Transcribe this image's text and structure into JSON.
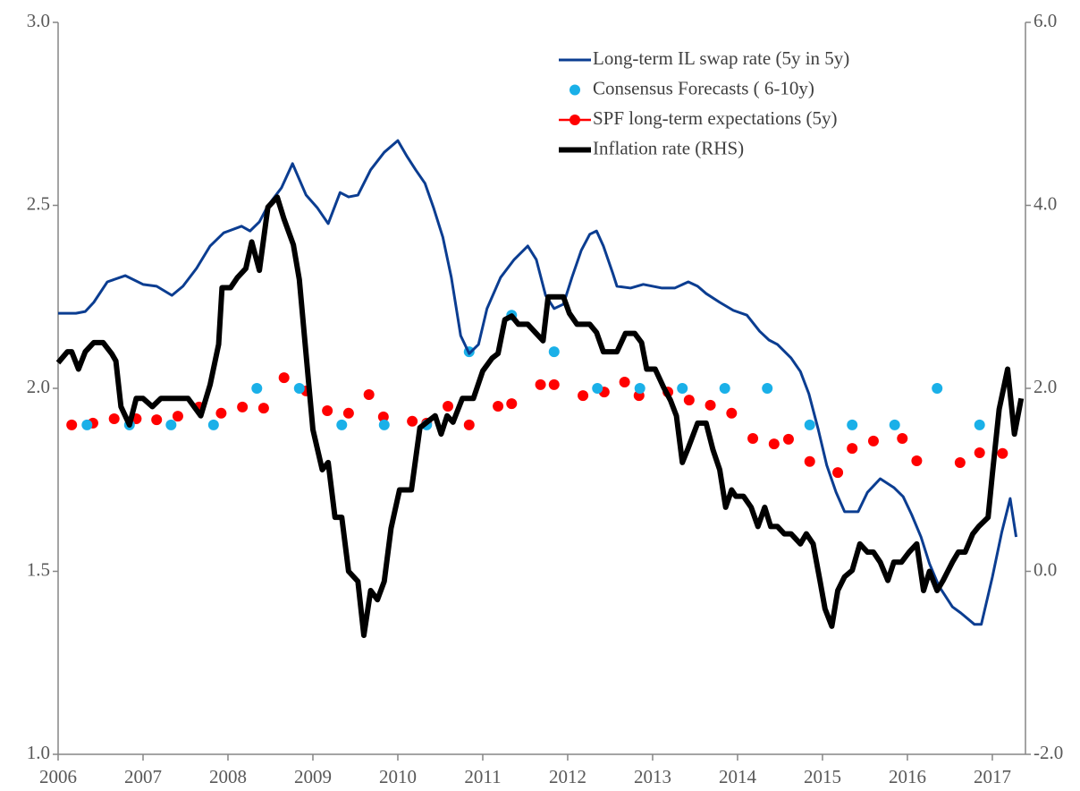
{
  "chart_data": {
    "type": "line",
    "xlim": [
      2006,
      2017.39
    ],
    "xticks": [
      2006,
      2007,
      2008,
      2009,
      2010,
      2011,
      2012,
      2013,
      2014,
      2015,
      2016,
      2017
    ],
    "ylim": [
      1,
      3
    ],
    "yticks": [
      {
        "value": 1,
        "label": "1.0"
      },
      1.5,
      {
        "value": 2,
        "label": "2.0"
      },
      2.5,
      {
        "value": 3,
        "label": "3.0"
      }
    ],
    "y2lim": [
      -2,
      6
    ],
    "y2ticks": [
      {
        "value": -2,
        "label": "-2.0"
      },
      {
        "value": 0,
        "label": "0.0"
      },
      {
        "value": 2,
        "label": "2.0"
      },
      {
        "value": 4,
        "label": "4.0"
      },
      {
        "value": 6,
        "label": "6.0"
      }
    ],
    "grid": false,
    "legend": "top-right",
    "series": [
      {
        "name": "Long-term IL swap rate (5y in 5y)",
        "color": "#0b3d91",
        "style": "line",
        "width": 3,
        "x": [
          2006.0,
          2006.21,
          2006.32,
          2006.42,
          2006.58,
          2006.79,
          2007.0,
          2007.16,
          2007.34,
          2007.47,
          2007.63,
          2007.79,
          2007.95,
          2008.16,
          2008.26,
          2008.37,
          2008.47,
          2008.63,
          2008.76,
          2008.92,
          2009.05,
          2009.18,
          2009.32,
          2009.42,
          2009.53,
          2009.68,
          2009.84,
          2010.0,
          2010.11,
          2010.21,
          2010.32,
          2010.42,
          2010.53,
          2010.63,
          2010.74,
          2010.84,
          2010.95,
          2011.05,
          2011.21,
          2011.37,
          2011.53,
          2011.63,
          2011.74,
          2011.84,
          2011.95,
          2012.05,
          2012.16,
          2012.26,
          2012.34,
          2012.42,
          2012.53,
          2012.58,
          2012.74,
          2012.89,
          2013.11,
          2013.26,
          2013.42,
          2013.53,
          2013.63,
          2013.79,
          2013.95,
          2014.11,
          2014.26,
          2014.37,
          2014.47,
          2014.63,
          2014.74,
          2014.84,
          2014.95,
          2015.05,
          2015.16,
          2015.26,
          2015.42,
          2015.53,
          2015.68,
          2015.84,
          2015.95,
          2016.05,
          2016.16,
          2016.26,
          2016.37,
          2016.53,
          2016.63,
          2016.79,
          2016.87,
          2017.0,
          2017.11,
          2017.21,
          2017.28
        ],
        "values": [
          2.205,
          2.205,
          2.21,
          2.235,
          2.291,
          2.308,
          2.284,
          2.279,
          2.254,
          2.279,
          2.328,
          2.389,
          2.425,
          2.443,
          2.43,
          2.455,
          2.499,
          2.548,
          2.614,
          2.528,
          2.494,
          2.45,
          2.535,
          2.523,
          2.528,
          2.597,
          2.645,
          2.677,
          2.633,
          2.597,
          2.56,
          2.494,
          2.413,
          2.303,
          2.144,
          2.095,
          2.12,
          2.218,
          2.303,
          2.352,
          2.389,
          2.352,
          2.254,
          2.218,
          2.23,
          2.303,
          2.377,
          2.421,
          2.43,
          2.389,
          2.315,
          2.279,
          2.274,
          2.284,
          2.274,
          2.274,
          2.291,
          2.279,
          2.259,
          2.235,
          2.213,
          2.2,
          2.156,
          2.132,
          2.12,
          2.083,
          2.046,
          1.985,
          1.888,
          1.79,
          1.716,
          1.663,
          1.663,
          1.716,
          1.753,
          1.729,
          1.704,
          1.655,
          1.594,
          1.521,
          1.46,
          1.403,
          1.386,
          1.355,
          1.355,
          1.484,
          1.606,
          1.699,
          1.594
        ]
      },
      {
        "name": "Consensus Forecasts ( 6-10y)",
        "color": "#1ab0e8",
        "style": "dots",
        "x": [
          2006.34,
          2006.84,
          2007.33,
          2007.83,
          2008.34,
          2008.84,
          2009.34,
          2009.84,
          2010.34,
          2010.84,
          2011.34,
          2011.84,
          2012.35,
          2012.85,
          2013.35,
          2013.85,
          2014.35,
          2014.85,
          2015.35,
          2015.85,
          2016.35,
          2016.85
        ],
        "values": [
          1.9,
          1.9,
          1.9,
          1.9,
          2.0,
          2.0,
          1.9,
          1.9,
          1.9,
          2.1,
          2.2,
          2.1,
          2.0,
          2.0,
          2.0,
          2.0,
          2.0,
          1.9,
          1.9,
          1.9,
          2.0,
          1.9
        ]
      },
      {
        "name": "SPF long-term expectations (5y)",
        "color": "#ff0000",
        "style": "dots",
        "legend_marker": "line-dot",
        "x": [
          2006.16,
          2006.41,
          2006.66,
          2006.92,
          2007.16,
          2007.41,
          2007.66,
          2007.92,
          2008.17,
          2008.42,
          2008.66,
          2008.92,
          2009.17,
          2009.42,
          2009.66,
          2009.83,
          2010.17,
          2010.34,
          2010.59,
          2010.84,
          2011.18,
          2011.34,
          2011.68,
          2011.84,
          2012.18,
          2012.43,
          2012.67,
          2012.84,
          2013.18,
          2013.43,
          2013.68,
          2013.93,
          2014.18,
          2014.43,
          2014.6,
          2014.85,
          2015.18,
          2015.35,
          2015.6,
          2015.94,
          2016.11,
          2016.62,
          2016.85,
          2017.12
        ],
        "values": [
          1.9,
          1.905,
          1.917,
          1.917,
          1.914,
          1.924,
          1.949,
          1.932,
          1.949,
          1.946,
          2.029,
          1.993,
          1.939,
          1.932,
          1.983,
          1.922,
          1.91,
          1.905,
          1.951,
          1.9,
          1.951,
          1.958,
          2.01,
          2.01,
          1.98,
          1.99,
          2.017,
          1.98,
          1.99,
          1.968,
          1.954,
          1.932,
          1.863,
          1.848,
          1.861,
          1.8,
          1.77,
          1.836,
          1.856,
          1.863,
          1.802,
          1.797,
          1.824,
          1.822
        ]
      },
      {
        "name": "Inflation rate (RHS)",
        "color": "#000000",
        "style": "line",
        "width": 6,
        "axis": "y2",
        "x": [
          2006.0,
          2006.11,
          2006.16,
          2006.24,
          2006.32,
          2006.42,
          2006.53,
          2006.63,
          2006.68,
          2006.74,
          2006.84,
          2006.92,
          2007.0,
          2007.11,
          2007.21,
          2007.37,
          2007.53,
          2007.68,
          2007.79,
          2007.89,
          2007.93,
          2008.03,
          2008.11,
          2008.21,
          2008.28,
          2008.37,
          2008.47,
          2008.58,
          2008.66,
          2008.77,
          2008.84,
          2008.95,
          2009.0,
          2009.11,
          2009.18,
          2009.26,
          2009.34,
          2009.42,
          2009.53,
          2009.6,
          2009.68,
          2009.76,
          2009.84,
          2009.92,
          2010.02,
          2010.16,
          2010.26,
          2010.37,
          2010.44,
          2010.51,
          2010.58,
          2010.65,
          2010.76,
          2010.89,
          2011.0,
          2011.11,
          2011.18,
          2011.26,
          2011.34,
          2011.42,
          2011.53,
          2011.63,
          2011.71,
          2011.77,
          2011.89,
          2011.95,
          2012.02,
          2012.11,
          2012.26,
          2012.34,
          2012.42,
          2012.58,
          2012.68,
          2012.79,
          2012.87,
          2012.93,
          2013.03,
          2013.13,
          2013.21,
          2013.28,
          2013.35,
          2013.42,
          2013.53,
          2013.63,
          2013.71,
          2013.79,
          2013.86,
          2013.93,
          2013.98,
          2014.07,
          2014.16,
          2014.24,
          2014.32,
          2014.39,
          2014.47,
          2014.55,
          2014.63,
          2014.74,
          2014.81,
          2014.89,
          2014.97,
          2015.03,
          2015.11,
          2015.18,
          2015.26,
          2015.35,
          2015.44,
          2015.53,
          2015.6,
          2015.68,
          2015.77,
          2015.84,
          2015.93,
          2016.02,
          2016.11,
          2016.19,
          2016.26,
          2016.35,
          2016.42,
          2016.53,
          2016.6,
          2016.68,
          2016.77,
          2016.84,
          2016.95,
          2017.0,
          2017.08,
          2017.18,
          2017.26,
          2017.34
        ],
        "values": [
          2.28,
          2.4,
          2.4,
          2.21,
          2.4,
          2.5,
          2.5,
          2.38,
          2.3,
          1.8,
          1.6,
          1.89,
          1.89,
          1.8,
          1.89,
          1.89,
          1.89,
          1.7,
          2.04,
          2.48,
          3.1,
          3.1,
          3.21,
          3.31,
          3.6,
          3.29,
          3.98,
          4.09,
          3.85,
          3.57,
          3.19,
          2.06,
          1.55,
          1.11,
          1.19,
          0.59,
          0.59,
          0.0,
          -0.11,
          -0.7,
          -0.21,
          -0.31,
          -0.11,
          0.47,
          0.89,
          0.89,
          1.57,
          1.65,
          1.7,
          1.5,
          1.7,
          1.63,
          1.89,
          1.89,
          2.19,
          2.33,
          2.38,
          2.75,
          2.79,
          2.7,
          2.7,
          2.6,
          2.52,
          3.0,
          3.0,
          3.0,
          2.82,
          2.7,
          2.7,
          2.61,
          2.4,
          2.4,
          2.6,
          2.6,
          2.5,
          2.21,
          2.21,
          2.01,
          1.87,
          1.7,
          1.19,
          1.35,
          1.62,
          1.62,
          1.33,
          1.11,
          0.7,
          0.89,
          0.82,
          0.82,
          0.7,
          0.49,
          0.7,
          0.49,
          0.49,
          0.41,
          0.41,
          0.3,
          0.41,
          0.3,
          -0.1,
          -0.41,
          -0.6,
          -0.21,
          -0.06,
          0.01,
          0.3,
          0.21,
          0.21,
          0.1,
          -0.1,
          0.1,
          0.1,
          0.21,
          0.3,
          -0.21,
          0.0,
          -0.21,
          -0.1,
          0.1,
          0.21,
          0.21,
          0.41,
          0.49,
          0.59,
          1.06,
          1.77,
          2.21,
          1.5,
          1.89
        ]
      }
    ]
  }
}
